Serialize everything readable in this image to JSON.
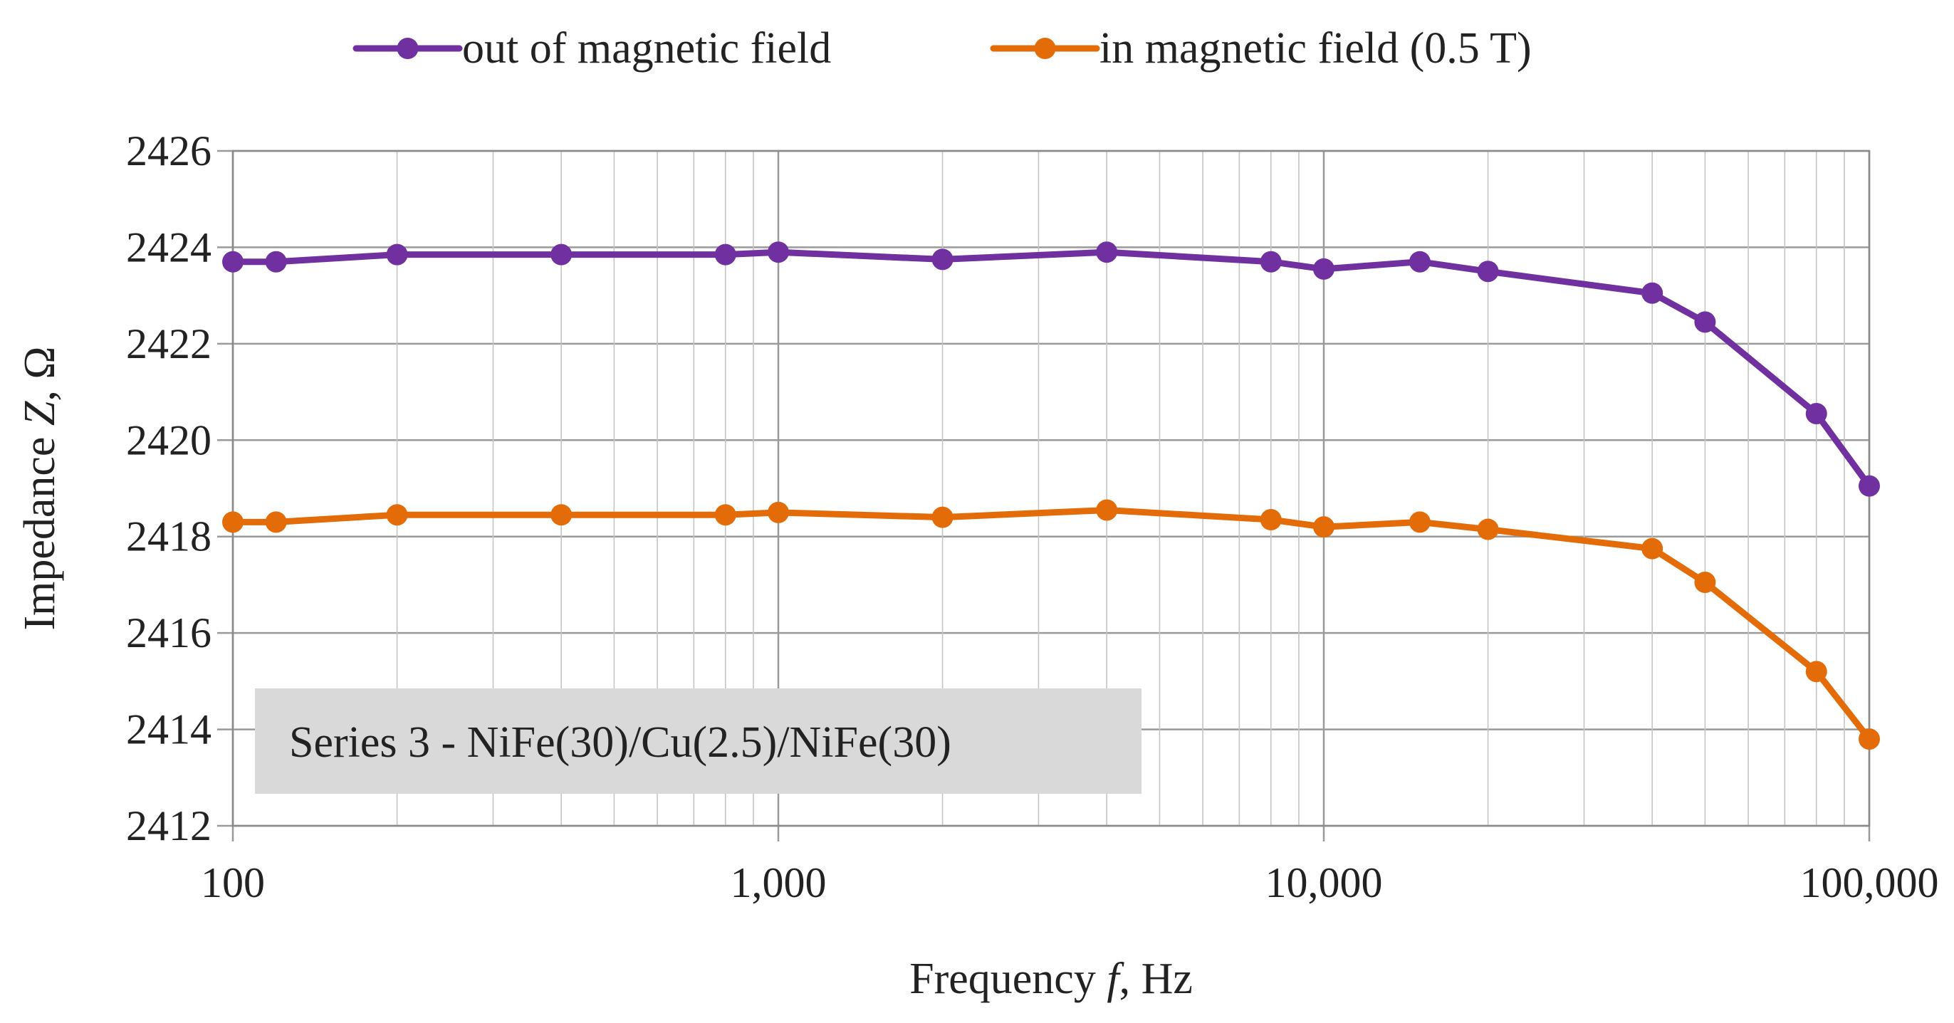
{
  "chart_data": {
    "type": "line",
    "x_scale": "log",
    "xlabel": "Frequency f, Hz",
    "xlabel_parts": {
      "prefix": "Frequency ",
      "italic": "f",
      "suffix": ", Hz"
    },
    "ylabel": "Impedance Z, Ω",
    "ylabel_parts": {
      "prefix": "Impedance ",
      "italic": "Z",
      "suffix": ", Ω"
    },
    "xlim": [
      100,
      100000
    ],
    "ylim": [
      2412,
      2426
    ],
    "x_ticks": [
      100,
      1000,
      10000,
      100000
    ],
    "x_tick_labels": [
      "100",
      "1,000",
      "10,000",
      "100,000"
    ],
    "y_ticks": [
      2412,
      2414,
      2416,
      2418,
      2420,
      2422,
      2424,
      2426
    ],
    "y_tick_labels": [
      "2412",
      "2414",
      "2416",
      "2418",
      "2420",
      "2422",
      "2424",
      "2426"
    ],
    "grid": true,
    "legend_position": "top",
    "annotation": "Series 3 - NiFe(30)/Cu(2.5)/NiFe(30)",
    "series": [
      {
        "name": "out of magnetic field",
        "color": "#7030a0",
        "x": [
          100,
          120,
          200,
          400,
          800,
          1000,
          2000,
          4000,
          8000,
          10000,
          15000,
          20000,
          40000,
          50000,
          80000,
          100000
        ],
        "y": [
          2423.7,
          2423.7,
          2423.85,
          2423.85,
          2423.85,
          2423.9,
          2423.75,
          2423.9,
          2423.7,
          2423.55,
          2423.7,
          2423.5,
          2423.05,
          2422.45,
          2420.55,
          2419.05
        ]
      },
      {
        "name": "in magnetic field (0.5 T)",
        "color": "#e36c09",
        "x": [
          100,
          120,
          200,
          400,
          800,
          1000,
          2000,
          4000,
          8000,
          10000,
          15000,
          20000,
          40000,
          50000,
          80000,
          100000
        ],
        "y": [
          2418.3,
          2418.3,
          2418.45,
          2418.45,
          2418.45,
          2418.5,
          2418.4,
          2418.55,
          2418.35,
          2418.2,
          2418.3,
          2418.15,
          2417.75,
          2417.05,
          2415.2,
          2413.8
        ]
      }
    ]
  }
}
